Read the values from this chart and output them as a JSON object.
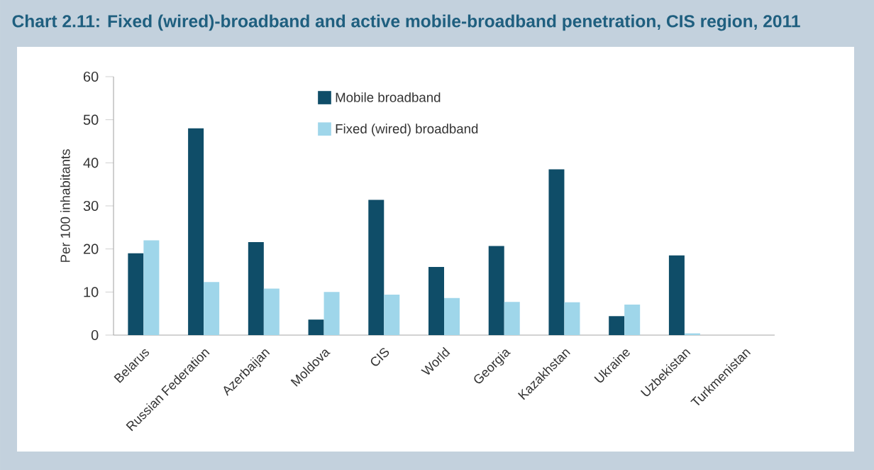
{
  "chart_data": {
    "type": "bar",
    "title": "Chart 2.11: Fixed (wired)-broadband and active mobile-broadband penetration, CIS region, 2011",
    "ylabel": "Per 100 inhabitants",
    "categories": [
      "Belarus",
      "Russian Federation",
      "Azerbaijan",
      "Moldova",
      "CIS",
      "World",
      "Georgia",
      "Kazakhstan",
      "Ukraine",
      "Uzbekistan",
      "Turkmenistan"
    ],
    "series": [
      {
        "name": "Mobile broadband",
        "color": "#0f4d68",
        "values": [
          19,
          48,
          21.6,
          3.6,
          31.4,
          15.8,
          20.7,
          38.5,
          4.4,
          18.5,
          null
        ]
      },
      {
        "name": "Fixed (wired) broadband",
        "color": "#9fd6ea",
        "values": [
          22,
          12.3,
          10.8,
          10,
          9.4,
          8.6,
          7.7,
          7.6,
          7.1,
          0.4,
          null
        ]
      }
    ],
    "ylim": [
      0,
      60
    ],
    "yticks": [
      0,
      10,
      20,
      30,
      40,
      50,
      60
    ],
    "grid": false,
    "legend": "top"
  }
}
